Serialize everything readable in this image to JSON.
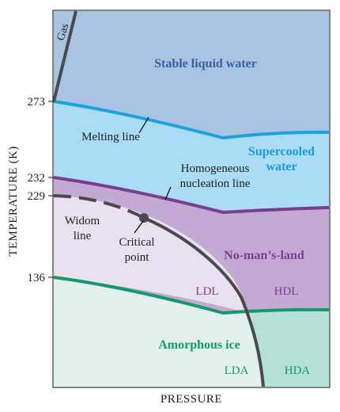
{
  "axes": {
    "x_label": "PRESSURE",
    "y_label": "TEMPERATURE (K)",
    "y_ticks": [
      "273",
      "232",
      "229",
      "136"
    ]
  },
  "regions": {
    "stable_liquid": "Stable liquid water",
    "supercooled_1": "Supercooled",
    "supercooled_2": "water",
    "no_mans_land": "No-man’s-land",
    "amorphous_ice": "Amorphous ice",
    "gas": "Gas"
  },
  "lines": {
    "melting": "Melting line",
    "nucleation_1": "Homogeneous",
    "nucleation_2": "nucleation line",
    "widom_1": "Widom",
    "widom_2": "line",
    "critical_1": "Critical",
    "critical_2": "point"
  },
  "phases": {
    "ldl": "LDL",
    "hdl": "HDL",
    "lda": "LDA",
    "hda": "HDA"
  },
  "colors": {
    "stable_liquid_fill": "#a9c4e2",
    "supercooled_fill": "#aadcf5",
    "nucleation_band_fill": "#c3a9d3",
    "ldl_fill": "#e9e1f0",
    "lda_fill": "#e2f1ee",
    "hda_fill": "#b4e0d7",
    "melting_line": "#1aa3dc",
    "nucleation_line": "#7a3e90",
    "amorphous_line": "#149a68",
    "critical_line": "#4a4a4e",
    "stable_label": "#3a5ea3",
    "supercooled_label": "#1a9ad6",
    "no_mans_label": "#7a3e90",
    "amorphous_label": "#149a68"
  }
}
